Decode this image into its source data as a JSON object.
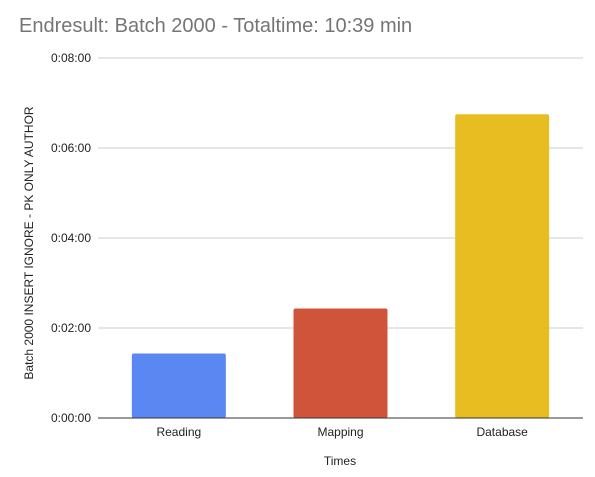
{
  "chart_data": {
    "type": "bar",
    "title": "Endresult: Batch 2000 - Totaltime: 10:39 min",
    "xlabel": "Times",
    "ylabel": "Batch 2000 INSERT IGNORE - PK ONLY AUTHOR",
    "categories": [
      "Reading",
      "Mapping",
      "Database"
    ],
    "values_seconds": [
      86,
      146,
      405
    ],
    "colors": [
      "#5b87f2",
      "#cf5439",
      "#e8bd22"
    ],
    "ylim_seconds": [
      0,
      480
    ],
    "yticks": [
      {
        "value_seconds": 0,
        "label": "0:00:00"
      },
      {
        "value_seconds": 120,
        "label": "0:02:00"
      },
      {
        "value_seconds": 240,
        "label": "0:04:00"
      },
      {
        "value_seconds": 360,
        "label": "0:06:00"
      },
      {
        "value_seconds": 480,
        "label": "0:08:00"
      }
    ],
    "grid": true,
    "legend": "none"
  }
}
